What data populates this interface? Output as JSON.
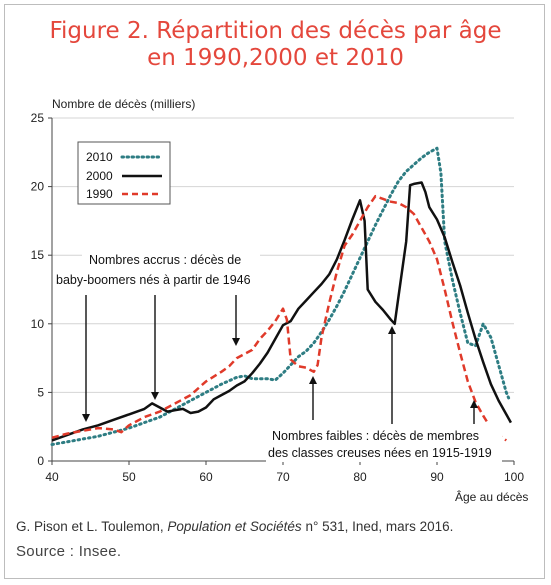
{
  "title": {
    "line1": "Figure 2. Répartition des décès par âge",
    "line2": "en 1990,2000 et 2010"
  },
  "credit": {
    "prefix": "G. Pison et L. Toulemon, ",
    "journal": "Population et Sociétés",
    "suffix": " n° 531, Ined, mars 2016."
  },
  "source": "Source : Insee.",
  "annotations": {
    "accrus_line1": "Nombres accrus : décès de",
    "accrus_line2": "baby-boomers nés à partir de 1946",
    "faibles_line1": "Nombres faibles : décès de membres",
    "faibles_line2": "des classes creuses nées en 1915-1919"
  },
  "colors": {
    "title": "#e4473c",
    "s2010": "#2e7d83",
    "s2000": "#111111",
    "s1990": "#e03a2a"
  },
  "chart_data": {
    "type": "line",
    "ylabel": "Nombre de décès (milliers)",
    "xlabel": "Âge au décès",
    "xlim": [
      40,
      100
    ],
    "ylim": [
      0,
      25
    ],
    "x_ticks": [
      "40",
      "50",
      "60",
      "70",
      "80",
      "90",
      "100"
    ],
    "y_ticks": [
      "0",
      "5",
      "10",
      "15",
      "20",
      "25"
    ],
    "grid": "horizontal",
    "legend_position": "top-left",
    "series": [
      {
        "name": "2010",
        "style": "dotted",
        "color": "#2e7d83",
        "points": [
          [
            40,
            1.2
          ],
          [
            42,
            1.4
          ],
          [
            44,
            1.6
          ],
          [
            46,
            1.8
          ],
          [
            48,
            2.1
          ],
          [
            50,
            2.4
          ],
          [
            52,
            2.8
          ],
          [
            54,
            3.2
          ],
          [
            56,
            3.8
          ],
          [
            58,
            4.4
          ],
          [
            60,
            5.0
          ],
          [
            62,
            5.6
          ],
          [
            64,
            6.1
          ],
          [
            65,
            6.2
          ],
          [
            66,
            6.0
          ],
          [
            68,
            6.0
          ],
          [
            69,
            5.9
          ],
          [
            70,
            6.4
          ],
          [
            71,
            7.0
          ],
          [
            72,
            7.6
          ],
          [
            73,
            8.0
          ],
          [
            74,
            8.6
          ],
          [
            75,
            9.4
          ],
          [
            76,
            10.3
          ],
          [
            77,
            11.3
          ],
          [
            78,
            12.4
          ],
          [
            79,
            13.6
          ],
          [
            80,
            14.8
          ],
          [
            81,
            16.0
          ],
          [
            82,
            17.2
          ],
          [
            83,
            18.3
          ],
          [
            84,
            19.4
          ],
          [
            85,
            20.4
          ],
          [
            86,
            21.1
          ],
          [
            87,
            21.6
          ],
          [
            88,
            22.1
          ],
          [
            89,
            22.5
          ],
          [
            90,
            22.8
          ],
          [
            90.5,
            21.0
          ],
          [
            91,
            16.0
          ],
          [
            92,
            13.2
          ],
          [
            93,
            10.8
          ],
          [
            94,
            8.6
          ],
          [
            95,
            8.4
          ],
          [
            96,
            10.0
          ],
          [
            97,
            9.0
          ],
          [
            98,
            7.0
          ],
          [
            99,
            5.0
          ],
          [
            99.3,
            4.6
          ]
        ]
      },
      {
        "name": "2000",
        "style": "solid",
        "color": "#111111",
        "points": [
          [
            40,
            1.5
          ],
          [
            42,
            1.9
          ],
          [
            44,
            2.3
          ],
          [
            46,
            2.6
          ],
          [
            48,
            3.0
          ],
          [
            50,
            3.4
          ],
          [
            52,
            3.8
          ],
          [
            53,
            4.2
          ],
          [
            54,
            3.9
          ],
          [
            55,
            3.6
          ],
          [
            56,
            3.7
          ],
          [
            57,
            3.8
          ],
          [
            58,
            3.5
          ],
          [
            59,
            3.6
          ],
          [
            60,
            3.9
          ],
          [
            61,
            4.5
          ],
          [
            62,
            4.8
          ],
          [
            63,
            5.1
          ],
          [
            64,
            5.5
          ],
          [
            65,
            5.8
          ],
          [
            66,
            6.4
          ],
          [
            67,
            7.1
          ],
          [
            68,
            7.9
          ],
          [
            69,
            8.9
          ],
          [
            70,
            9.9
          ],
          [
            71,
            10.2
          ],
          [
            72,
            11.1
          ],
          [
            73,
            11.7
          ],
          [
            74,
            12.3
          ],
          [
            75,
            12.9
          ],
          [
            76,
            13.6
          ],
          [
            77,
            14.7
          ],
          [
            78,
            16.1
          ],
          [
            79,
            17.6
          ],
          [
            80,
            19.0
          ],
          [
            80.6,
            17.5
          ],
          [
            81,
            12.5
          ],
          [
            82,
            11.6
          ],
          [
            83,
            11.0
          ],
          [
            84,
            10.3
          ],
          [
            84.5,
            10.0
          ],
          [
            85,
            12.0
          ],
          [
            86,
            16.0
          ],
          [
            86.5,
            20.1
          ],
          [
            87,
            20.2
          ],
          [
            88,
            20.3
          ],
          [
            88.5,
            19.6
          ],
          [
            89,
            18.5
          ],
          [
            90,
            17.6
          ],
          [
            91,
            16.3
          ],
          [
            92,
            14.5
          ],
          [
            93,
            12.8
          ],
          [
            94,
            10.8
          ],
          [
            95,
            8.9
          ],
          [
            96,
            7.2
          ],
          [
            97,
            5.6
          ],
          [
            98,
            4.4
          ],
          [
            99,
            3.4
          ],
          [
            99.6,
            2.8
          ]
        ]
      },
      {
        "name": "1990",
        "style": "dashed",
        "color": "#e03a2a",
        "points": [
          [
            40,
            1.7
          ],
          [
            42,
            2.0
          ],
          [
            44,
            2.2
          ],
          [
            46,
            2.4
          ],
          [
            48,
            2.3
          ],
          [
            49,
            2.1
          ],
          [
            50,
            2.6
          ],
          [
            52,
            3.2
          ],
          [
            54,
            3.6
          ],
          [
            56,
            4.2
          ],
          [
            58,
            4.8
          ],
          [
            60,
            5.8
          ],
          [
            62,
            6.5
          ],
          [
            63,
            6.9
          ],
          [
            64,
            7.5
          ],
          [
            65,
            7.8
          ],
          [
            66,
            8.1
          ],
          [
            67,
            8.9
          ],
          [
            68,
            9.5
          ],
          [
            69,
            10.2
          ],
          [
            70,
            11.1
          ],
          [
            70.5,
            10.3
          ],
          [
            71,
            7.4
          ],
          [
            72,
            6.9
          ],
          [
            73,
            6.8
          ],
          [
            74,
            6.5
          ],
          [
            74.5,
            7.0
          ],
          [
            75,
            9.0
          ],
          [
            76,
            11.5
          ],
          [
            77,
            13.8
          ],
          [
            78,
            15.7
          ],
          [
            79,
            16.5
          ],
          [
            80,
            17.5
          ],
          [
            81,
            18.5
          ],
          [
            82,
            19.3
          ],
          [
            83,
            19.1
          ],
          [
            84,
            18.9
          ],
          [
            85,
            18.8
          ],
          [
            86,
            18.5
          ],
          [
            87,
            18.0
          ],
          [
            88,
            17.0
          ],
          [
            89,
            16.0
          ],
          [
            90,
            14.7
          ],
          [
            91,
            12.5
          ],
          [
            92,
            10.1
          ],
          [
            93,
            7.9
          ],
          [
            94,
            5.8
          ],
          [
            95,
            4.3
          ],
          [
            96,
            3.3
          ],
          [
            97,
            2.4
          ],
          [
            98,
            1.9
          ],
          [
            99,
            1.5
          ]
        ]
      }
    ]
  }
}
